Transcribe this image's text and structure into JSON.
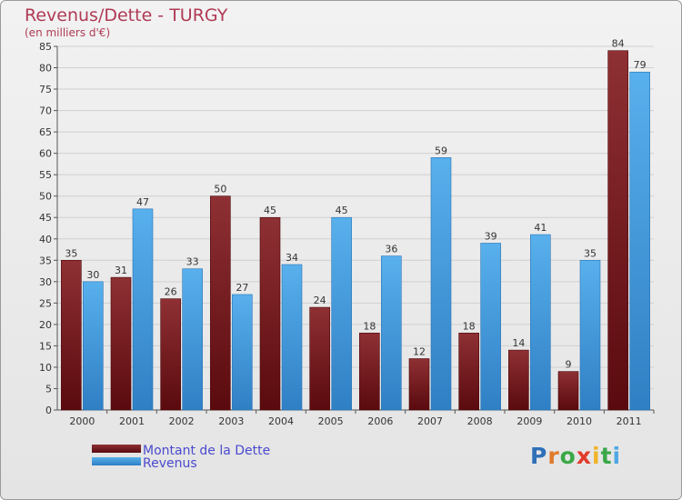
{
  "chart_data": {
    "type": "bar",
    "title": "Revenus/Dette - TURGY",
    "subtitle": "(en milliers d'€)",
    "categories": [
      "2000",
      "2001",
      "2002",
      "2003",
      "2004",
      "2005",
      "2006",
      "2007",
      "2008",
      "2009",
      "2010",
      "2011"
    ],
    "series": [
      {
        "name": "Montant de la Dette",
        "color": "#7a1f22",
        "values": [
          35,
          31,
          26,
          50,
          45,
          24,
          18,
          12,
          18,
          14,
          9,
          84
        ]
      },
      {
        "name": "Revenus",
        "color": "#4ea7e6",
        "values": [
          30,
          47,
          33,
          27,
          34,
          45,
          36,
          59,
          39,
          41,
          35,
          79
        ]
      }
    ],
    "yticks": [
      0,
      5,
      10,
      15,
      20,
      25,
      30,
      35,
      40,
      45,
      50,
      55,
      60,
      65,
      70,
      75,
      80,
      85
    ],
    "ylim": [
      0,
      85
    ],
    "xlabel": "",
    "ylabel": "",
    "legend_position": "bottom-left"
  },
  "logo": {
    "letters": [
      {
        "ch": "P",
        "color": "#2f6fb8"
      },
      {
        "ch": "r",
        "color": "#e07a2a"
      },
      {
        "ch": "o",
        "color": "#3aa848"
      },
      {
        "ch": "x",
        "color": "#e23b2b"
      },
      {
        "ch": "i",
        "color": "#f0b428"
      },
      {
        "ch": "t",
        "color": "#3aa848"
      },
      {
        "ch": "i",
        "color": "#4ea7e6"
      }
    ]
  }
}
